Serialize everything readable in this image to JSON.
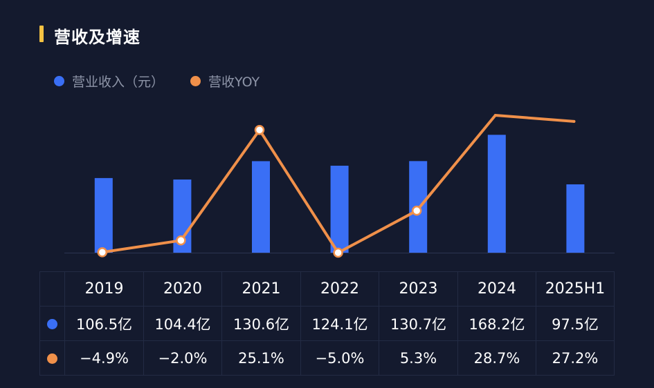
{
  "title": "营收及增速",
  "legend": [
    {
      "label": "营业收入（元）",
      "color": "#3a6ff5"
    },
    {
      "label": "营收YOY",
      "color": "#f0904a"
    }
  ],
  "chart_data": {
    "type": "bar",
    "title": "营收及增速",
    "categories": [
      "2019",
      "2020",
      "2021",
      "2022",
      "2023",
      "2024",
      "2025H1"
    ],
    "series": [
      {
        "name": "营业收入（元）",
        "type": "bar",
        "unit": "亿",
        "color": "#3a6ff5",
        "values": [
          106.5,
          104.4,
          130.6,
          124.1,
          130.7,
          168.2,
          97.5
        ]
      },
      {
        "name": "营收YOY",
        "type": "line",
        "unit": "%",
        "color": "#f0904a",
        "values": [
          -4.9,
          -2.0,
          25.1,
          -5.0,
          5.3,
          28.7,
          27.2
        ]
      }
    ]
  },
  "table": {
    "years": [
      "2019",
      "2020",
      "2021",
      "2022",
      "2023",
      "2024",
      "2025H1"
    ],
    "revenue": [
      "106.5亿",
      "104.4亿",
      "130.6亿",
      "124.1亿",
      "130.7亿",
      "168.2亿",
      "97.5亿"
    ],
    "yoy": [
      "−4.9%",
      "−2.0%",
      "25.1%",
      "−5.0%",
      "5.3%",
      "28.7%",
      "27.2%"
    ]
  }
}
